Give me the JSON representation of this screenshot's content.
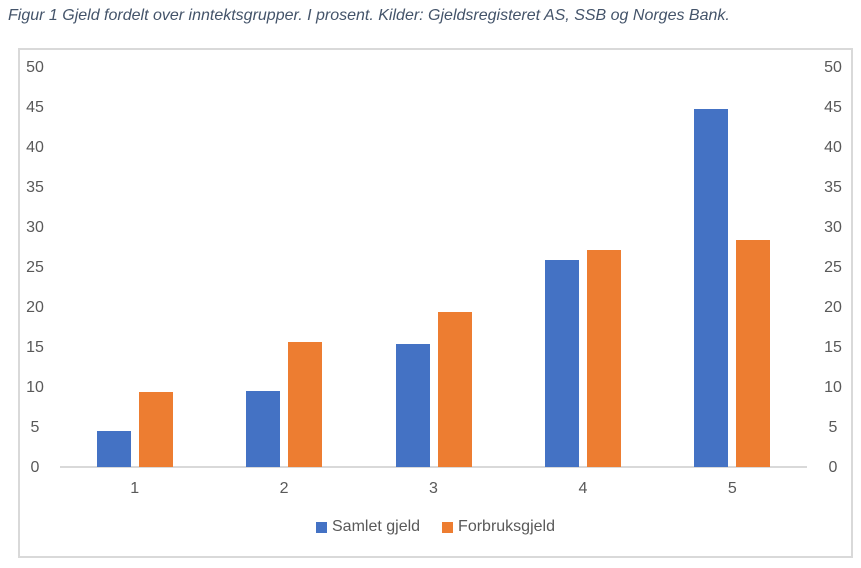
{
  "title": "Figur 1 Gjeld fordelt over inntektsgrupper. I prosent. Kilder: Gjeldsregisteret AS, SSB og Norges Bank.",
  "colors": {
    "title_text": "#44546A",
    "axis_text": "#595959",
    "axis_line": "#D9D9D9",
    "frame_border": "#D9D9D9",
    "background": "#FFFFFF"
  },
  "chart_data": {
    "type": "bar",
    "title": "Figur 1 Gjeld fordelt over inntektsgrupper. I prosent. Kilder: Gjeldsregisteret AS, SSB og Norges Bank.",
    "categories": [
      "1",
      "2",
      "3",
      "4",
      "5"
    ],
    "series": [
      {
        "name": "Samlet gjeld",
        "color": "#4472C4",
        "values": [
          4.5,
          9.5,
          15.4,
          25.9,
          44.8
        ]
      },
      {
        "name": "Forbruksgjeld",
        "color": "#ED7D31",
        "values": [
          9.4,
          15.6,
          19.4,
          27.1,
          28.4
        ]
      }
    ],
    "xlabel": "",
    "ylabel": "",
    "ylim": [
      0,
      50
    ],
    "yticks": [
      0,
      5,
      10,
      15,
      20,
      25,
      30,
      35,
      40,
      45,
      50
    ],
    "y_axis_sides": [
      "left",
      "right"
    ],
    "grid": false,
    "legend_position": "bottom"
  }
}
